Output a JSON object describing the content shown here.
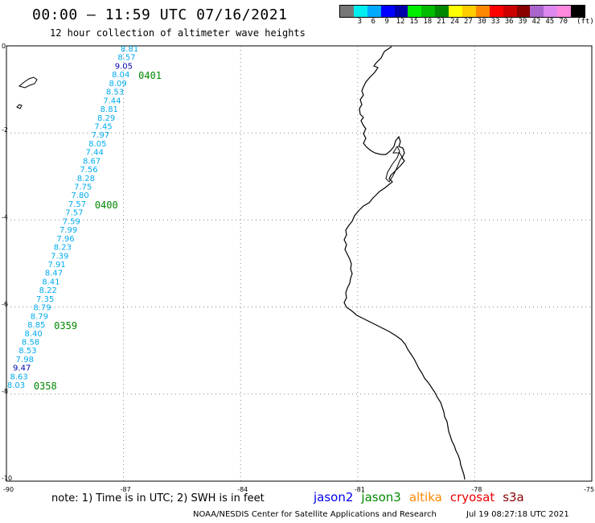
{
  "header": {
    "title": "00:00 — 11:59 UTC 07/16/2021",
    "subtitle": "12 hour collection of altimeter wave heights"
  },
  "legend": {
    "swatches": [
      {
        "label": "",
        "color": "#777777"
      },
      {
        "label": "3",
        "color": "#00eeee"
      },
      {
        "label": "6",
        "color": "#00aaff"
      },
      {
        "label": "9",
        "color": "#0000ff"
      },
      {
        "label": "12",
        "color": "#0000aa"
      },
      {
        "label": "15",
        "color": "#00ee00"
      },
      {
        "label": "18",
        "color": "#00bb00"
      },
      {
        "label": "21",
        "color": "#008800"
      },
      {
        "label": "24",
        "color": "#ffff00"
      },
      {
        "label": "27",
        "color": "#ffcc00"
      },
      {
        "label": "30",
        "color": "#ff8800"
      },
      {
        "label": "33",
        "color": "#ff0000"
      },
      {
        "label": "36",
        "color": "#cc0000"
      },
      {
        "label": "39",
        "color": "#880000"
      },
      {
        "label": "42",
        "color": "#aa66cc"
      },
      {
        "label": "45",
        "color": "#dd88ee"
      },
      {
        "label": "70",
        "color": "#ff88dd"
      },
      {
        "label": "",
        "color": "#000000"
      }
    ],
    "unit": "(ft)"
  },
  "axes": {
    "lat_ticks": [
      "0",
      "-2",
      "-4",
      "-6",
      "-8",
      "-10"
    ],
    "lon_ticks": [
      "-90",
      "-87",
      "-84",
      "-81",
      "-78",
      "-75"
    ]
  },
  "track": {
    "readings": [
      {
        "value": "8.81",
        "color": "#00aaee"
      },
      {
        "value": "8.57",
        "color": "#00aaee"
      },
      {
        "value": "9.05",
        "color": "#0000aa"
      },
      {
        "value": "8.04",
        "color": "#00aaee"
      },
      {
        "value": "8.09",
        "color": "#00aaee"
      },
      {
        "value": "8.53",
        "color": "#00aaee"
      },
      {
        "value": "7.44",
        "color": "#00aaee"
      },
      {
        "value": "8.81",
        "color": "#00aaee"
      },
      {
        "value": "8.29",
        "color": "#00aaee"
      },
      {
        "value": "7.45",
        "color": "#00aaee"
      },
      {
        "value": "7.97",
        "color": "#00aaee"
      },
      {
        "value": "8.05",
        "color": "#00aaee"
      },
      {
        "value": "7.44",
        "color": "#00aaee"
      },
      {
        "value": "8.67",
        "color": "#00aaee"
      },
      {
        "value": "7.56",
        "color": "#00aaee"
      },
      {
        "value": "8.28",
        "color": "#00aaee"
      },
      {
        "value": "7.75",
        "color": "#00aaee"
      },
      {
        "value": "7.80",
        "color": "#00aaee"
      },
      {
        "value": "7.57",
        "color": "#00aaee"
      },
      {
        "value": "7.57",
        "color": "#00aaee"
      },
      {
        "value": "7.59",
        "color": "#00aaee"
      },
      {
        "value": "7.99",
        "color": "#00aaee"
      },
      {
        "value": "7.96",
        "color": "#00aaee"
      },
      {
        "value": "8.23",
        "color": "#00aaee"
      },
      {
        "value": "7.39",
        "color": "#00aaee"
      },
      {
        "value": "7.91",
        "color": "#00aaee"
      },
      {
        "value": "8.47",
        "color": "#00aaee"
      },
      {
        "value": "8.41",
        "color": "#00aaee"
      },
      {
        "value": "8.22",
        "color": "#00aaee"
      },
      {
        "value": "7.35",
        "color": "#00aaee"
      },
      {
        "value": "8.79",
        "color": "#00aaee"
      },
      {
        "value": "8.79",
        "color": "#00aaee"
      },
      {
        "value": "8.85",
        "color": "#00aaee"
      },
      {
        "value": "8.40",
        "color": "#00aaee"
      },
      {
        "value": "8.58",
        "color": "#00aaee"
      },
      {
        "value": "8.53",
        "color": "#00aaee"
      },
      {
        "value": "7.98",
        "color": "#00aaee"
      },
      {
        "value": "9.47",
        "color": "#0000aa"
      },
      {
        "value": "8.63",
        "color": "#00aaee"
      },
      {
        "value": "8.03",
        "color": "#00aaee"
      }
    ],
    "time_labels": [
      {
        "text": "0401",
        "index": 3
      },
      {
        "text": "0400",
        "index": 18
      },
      {
        "text": "0359",
        "index": 32
      },
      {
        "text": "0358",
        "index": 39
      }
    ],
    "time_color": "#008800"
  },
  "footer": {
    "note": "note: 1) Time is in UTC; 2) SWH is in feet",
    "satellites": [
      {
        "name": "jason2",
        "color": "#0000ee"
      },
      {
        "name": "jason3",
        "color": "#008800"
      },
      {
        "name": "altika",
        "color": "#ff8800"
      },
      {
        "name": "cryosat",
        "color": "#ee0000"
      },
      {
        "name": "s3a",
        "color": "#880000"
      }
    ],
    "credit": "NOAA/NESDIS Center for Satellite Applications and Research",
    "timestamp": "Jul 19 08:27:18 UTC 2021"
  }
}
